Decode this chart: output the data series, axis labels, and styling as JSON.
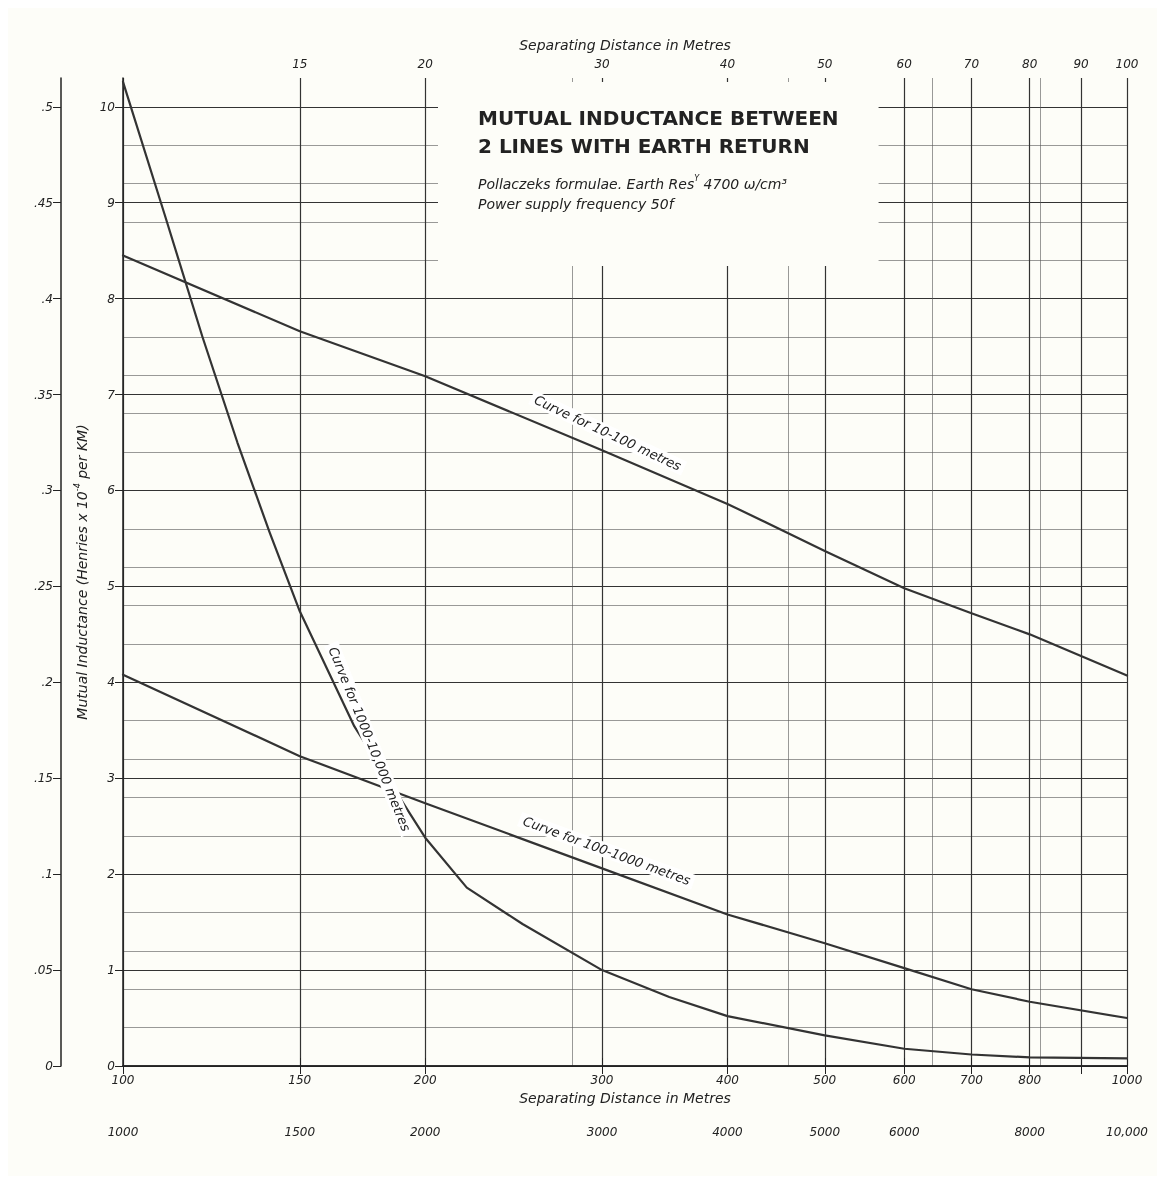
{
  "chart_data": [
    {
      "type": "line",
      "title": "MUTUAL INDUCTANCE BETWEEN\n2 LINES WITH EARTH RETURN",
      "subtitle": "Pollaczeks formulae. Earth Res$^{Y}$ 4700 ω/cm³\nPower supply frequency 50f",
      "xlabel": "Separating Distance in Metres",
      "ylabel": "Mutual Inductance (Henries x 10$^{-4}$ per KM)",
      "log": "x",
      "grid": true,
      "xlim": [
        100,
        1000
      ],
      "xticks": [
        100,
        150,
        200,
        300,
        400,
        500,
        600,
        700,
        800,
        {
          "value": 900,
          "label": null
        },
        1000
      ],
      "ylim": [
        0,
        10.3
      ],
      "yticks": [
        0,
        1,
        2,
        3,
        4,
        5,
        6,
        7,
        8,
        9,
        10
      ],
      "series": [
        {
          "name": "Curve for 100-1000 metres",
          "color": "#333333",
          "x": [
            100,
            150,
            200,
            300,
            400,
            500,
            600,
            700,
            800,
            1000
          ],
          "values": [
            4.08,
            3.23,
            2.74,
            2.06,
            1.58,
            1.28,
            1.02,
            0.8,
            0.67,
            0.5
          ]
        }
      ]
    },
    {
      "type": "line",
      "xlabel": "Separating Distance in Metres",
      "log": "x",
      "tick_labels": "x",
      "xlim": [
        10,
        100
      ],
      "xticks": [
        {
          "value": 10,
          "label": null
        },
        15,
        20,
        30,
        40,
        50,
        60,
        70,
        80,
        90,
        100
      ],
      "ylim": [
        0,
        10.3
      ],
      "series": [
        {
          "name": "Curve for 10-100 metres",
          "color": "#333333",
          "x": [
            10,
            15,
            20,
            30,
            40,
            50,
            60,
            70,
            80,
            100
          ],
          "values": [
            8.45,
            7.66,
            7.19,
            6.42,
            5.86,
            5.37,
            4.98,
            4.72,
            4.5,
            4.07
          ]
        }
      ]
    },
    {
      "type": "line",
      "log": "x",
      "xlim": [
        1000,
        10000
      ],
      "xticks": [
        1000,
        1500,
        2000,
        3000,
        4000,
        5000,
        6000,
        {
          "value": 7000,
          "label": null
        },
        8000,
        {
          "value": 9000,
          "label": null
        },
        {
          "value": 10000,
          "label": "10,000"
        }
      ],
      "ylim": [
        0,
        0.515
      ],
      "yticks": [
        0,
        {
          "value": 0.05,
          "label": ".05"
        },
        {
          "value": 0.1,
          "label": ".1"
        },
        {
          "value": 0.15,
          "label": ".15"
        },
        {
          "value": 0.2,
          "label": ".2"
        },
        {
          "value": 0.25,
          "label": ".25"
        },
        {
          "value": 0.3,
          "label": ".3"
        },
        {
          "value": 0.35,
          "label": ".35"
        },
        {
          "value": 0.4,
          "label": ".4"
        },
        {
          "value": 0.45,
          "label": ".45"
        },
        {
          "value": 0.5,
          "label": ".5"
        }
      ],
      "series": [
        {
          "name": "Curve for 1000-10,000 metres",
          "color": "#333333",
          "x": [
            1000,
            1100,
            1200,
            1300,
            1400,
            1500,
            1700,
            2000,
            2200,
            2500,
            3000,
            3500,
            4000,
            5000,
            6000,
            7000,
            8000,
            10000
          ],
          "values": [
            0.513,
            0.444,
            0.38,
            0.325,
            0.278,
            0.237,
            0.177,
            0.119,
            0.093,
            0.074,
            0.05,
            0.036,
            0.026,
            0.016,
            0.009,
            0.006,
            0.0045,
            0.004
          ]
        }
      ]
    }
  ]
}
